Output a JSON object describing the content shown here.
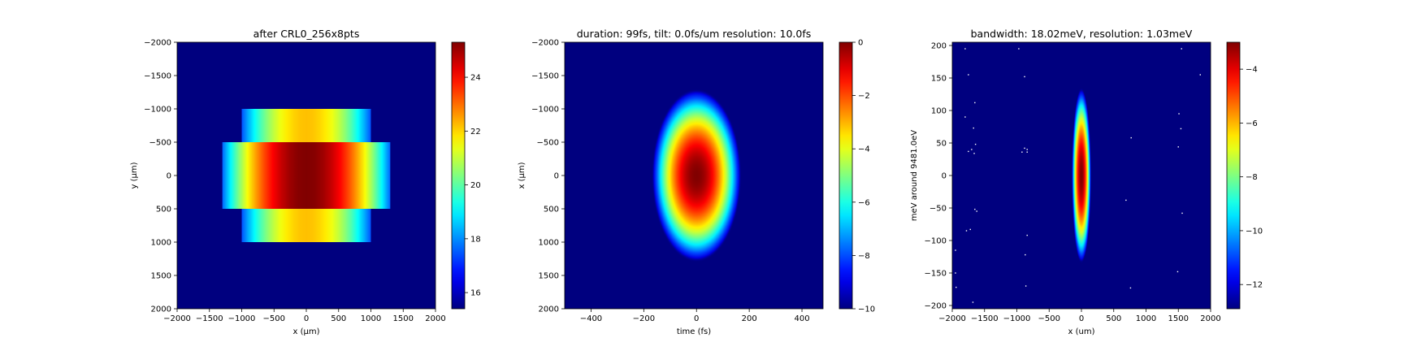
{
  "chart_data": [
    {
      "type": "heatmap",
      "title": "after CRL0_256x8pts",
      "xlabel": "x (µm)",
      "ylabel": "y (µm)",
      "xlim": [
        -2000,
        2000
      ],
      "ylim": [
        2000,
        -2000
      ],
      "xticks": [
        -2000,
        -1500,
        -1000,
        -500,
        0,
        500,
        1000,
        1500,
        2000
      ],
      "xtick_labels": [
        "−2000",
        "−1500",
        "−1000",
        "−500",
        "0",
        "500",
        "1000",
        "1500",
        "2000"
      ],
      "yticks": [
        -2000,
        -1500,
        -1000,
        -500,
        0,
        500,
        1000,
        1500,
        2000
      ],
      "ytick_labels": [
        "−2000",
        "−1500",
        "−1000",
        "−500",
        "0",
        "500",
        "1000",
        "1500",
        "2000"
      ],
      "colormap": "jet",
      "colorbar_range": [
        15.4,
        25.3
      ],
      "colorbar_ticks": [
        16,
        18,
        20,
        22,
        24
      ],
      "colorbar_tick_labels": [
        "16",
        "18",
        "20",
        "22",
        "24"
      ],
      "background_value": 15.4,
      "regions": [
        {
          "x_range": [
            -1000,
            1000
          ],
          "y_range": [
            -1000,
            -500
          ],
          "center_value": 22.2,
          "edge_value": 17.4
        },
        {
          "x_range": [
            -1300,
            1300
          ],
          "y_range": [
            -500,
            500
          ],
          "center_value": 25.3,
          "edge_value": 17.6
        },
        {
          "x_range": [
            -1000,
            1000
          ],
          "y_range": [
            500,
            1000
          ],
          "center_value": 22.2,
          "edge_value": 17.4
        }
      ]
    },
    {
      "type": "heatmap",
      "title": "duration: 99fs, tilt: 0.0fs/um resolution: 10.0fs",
      "xlabel": "time (fs)",
      "ylabel": "x (µm)",
      "xlim": [
        -500,
        480
      ],
      "ylim": [
        2000,
        -2000
      ],
      "xticks": [
        -400,
        -200,
        0,
        200,
        400
      ],
      "xtick_labels": [
        "−400",
        "−200",
        "0",
        "200",
        "400"
      ],
      "yticks": [
        -2000,
        -1500,
        -1000,
        -500,
        0,
        500,
        1000,
        1500,
        2000
      ],
      "ytick_labels": [
        "−2000",
        "−1500",
        "−1000",
        "−500",
        "0",
        "500",
        "1000",
        "1500",
        "2000"
      ],
      "colormap": "jet",
      "colorbar_range": [
        -10,
        0
      ],
      "colorbar_ticks": [
        -10,
        -8,
        -6,
        -4,
        -2,
        0
      ],
      "colorbar_tick_labels": [
        "−10",
        "−8",
        "−6",
        "−4",
        "−2",
        "0"
      ],
      "spot": {
        "x_center": 0,
        "y_center": 0,
        "x_half_width": 170,
        "y_half_width": 1300
      }
    },
    {
      "type": "heatmap",
      "title": "bandwidth: 18.02meV, resolution: 1.03meV",
      "xlabel": "x (um)",
      "ylabel": "meV around 9481.0eV",
      "xlim": [
        -2000,
        2000
      ],
      "ylim": [
        -205,
        205
      ],
      "xticks": [
        -2000,
        -1500,
        -1000,
        -500,
        0,
        500,
        1000,
        1500,
        2000
      ],
      "xtick_labels": [
        "−2000",
        "−1500",
        "−1000",
        "−500",
        "0",
        "500",
        "1000",
        "1500",
        "2000"
      ],
      "yticks": [
        200,
        150,
        100,
        50,
        0,
        -50,
        -100,
        -150,
        -200
      ],
      "ytick_labels": [
        "200",
        "150",
        "100",
        "50",
        "0",
        "−50",
        "−100",
        "−150",
        "−200"
      ],
      "colormap": "jet",
      "colorbar_range": [
        -12.9,
        -3
      ],
      "colorbar_ticks": [
        -12,
        -10,
        -8,
        -6,
        -4
      ],
      "colorbar_tick_labels": [
        "−12",
        "−10",
        "−8",
        "−6",
        "−4"
      ],
      "spot": {
        "x_center": 0,
        "y_center": 0,
        "x_half_width": 150,
        "y_half_width": 135
      },
      "speckles": [
        [
          -1800,
          195
        ],
        [
          -1750,
          155
        ],
        [
          -970,
          195
        ],
        [
          -880,
          152
        ],
        [
          1550,
          195
        ],
        [
          1840,
          155
        ],
        [
          -1800,
          90
        ],
        [
          -1650,
          112
        ],
        [
          -1670,
          73
        ],
        [
          -1640,
          48
        ],
        [
          -1700,
          40
        ],
        [
          -1750,
          37
        ],
        [
          -1660,
          34
        ],
        [
          -880,
          42
        ],
        [
          -840,
          40
        ],
        [
          -920,
          36
        ],
        [
          -840,
          36
        ],
        [
          1510,
          95
        ],
        [
          1540,
          72
        ],
        [
          1500,
          44
        ],
        [
          770,
          58
        ],
        [
          -1620,
          -55
        ],
        [
          -1650,
          -52
        ],
        [
          690,
          -38
        ],
        [
          1560,
          -58
        ],
        [
          -1780,
          -85
        ],
        [
          -1720,
          -83
        ],
        [
          -840,
          -92
        ],
        [
          -1950,
          -115
        ],
        [
          -870,
          -122
        ],
        [
          -1950,
          -150
        ],
        [
          1490,
          -148
        ],
        [
          -1940,
          -172
        ],
        [
          -860,
          -170
        ],
        [
          760,
          -173
        ],
        [
          -1680,
          -195
        ]
      ]
    }
  ]
}
